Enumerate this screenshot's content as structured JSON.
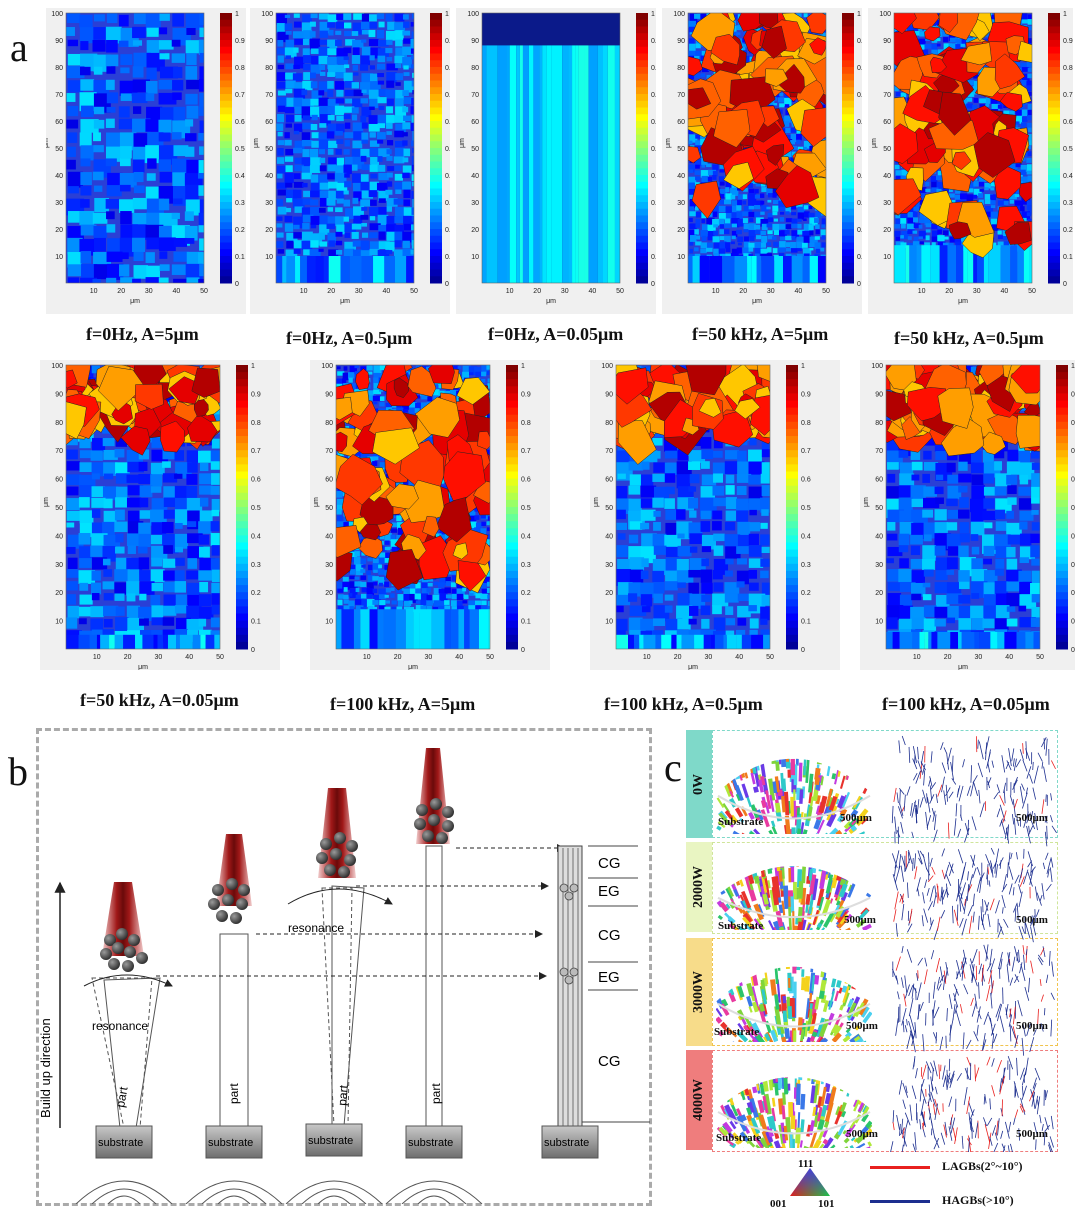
{
  "panel_labels": {
    "a": "a",
    "b": "b",
    "c": "c"
  },
  "panel_a": {
    "axis_unit": "μm",
    "y_ticks": [
      "100",
      "90",
      "80",
      "70",
      "60",
      "50",
      "40",
      "30",
      "20",
      "10"
    ],
    "x_ticks": [
      "10",
      "20",
      "30",
      "40",
      "50"
    ],
    "colorbar_ticks": [
      "1",
      "0.9",
      "0.8",
      "0.7",
      "0.6",
      "0.5",
      "0.4",
      "0.3",
      "0.2",
      "0.1",
      "0"
    ],
    "maps": [
      {
        "caption": "f=0Hz, A=5μm"
      },
      {
        "caption": "f=0Hz, A=0.5μm"
      },
      {
        "caption": "f=0Hz, A=0.05μm"
      },
      {
        "caption": "f=50 kHz, A=5μm"
      },
      {
        "caption": "f=50 kHz, A=0.5μm"
      },
      {
        "caption": "f=50 kHz, A=0.05μm"
      },
      {
        "caption": "f=100 kHz, A=5μm"
      },
      {
        "caption": "f=100 kHz, A=0.5μm"
      },
      {
        "caption": "f=100 kHz, A=0.05μm"
      }
    ]
  },
  "panel_b": {
    "axis_label": "Build up direction",
    "resonance_label": "resonance",
    "part_label": "part",
    "substrate_label": "substrate",
    "zones": [
      "CG",
      "EG",
      "CG",
      "EG",
      "CG"
    ]
  },
  "panel_c": {
    "rows": [
      {
        "power": "0W",
        "color": "#7fd9c9"
      },
      {
        "power": "2000W",
        "color": "#e9f5c2"
      },
      {
        "power": "3000W",
        "color": "#f7dc8a"
      },
      {
        "power": "4000W",
        "color": "#ef7d7d"
      }
    ],
    "substrate_label": "Substrate",
    "scale_bar": "500μm",
    "ipf_labels": {
      "top": "111",
      "left": "001",
      "right": "101"
    },
    "legend": [
      {
        "label": "LAGBs(2°~10°)",
        "color": "#e8201f"
      },
      {
        "label": "HAGBs(>10°)",
        "color": "#1d2f8f"
      }
    ]
  }
}
